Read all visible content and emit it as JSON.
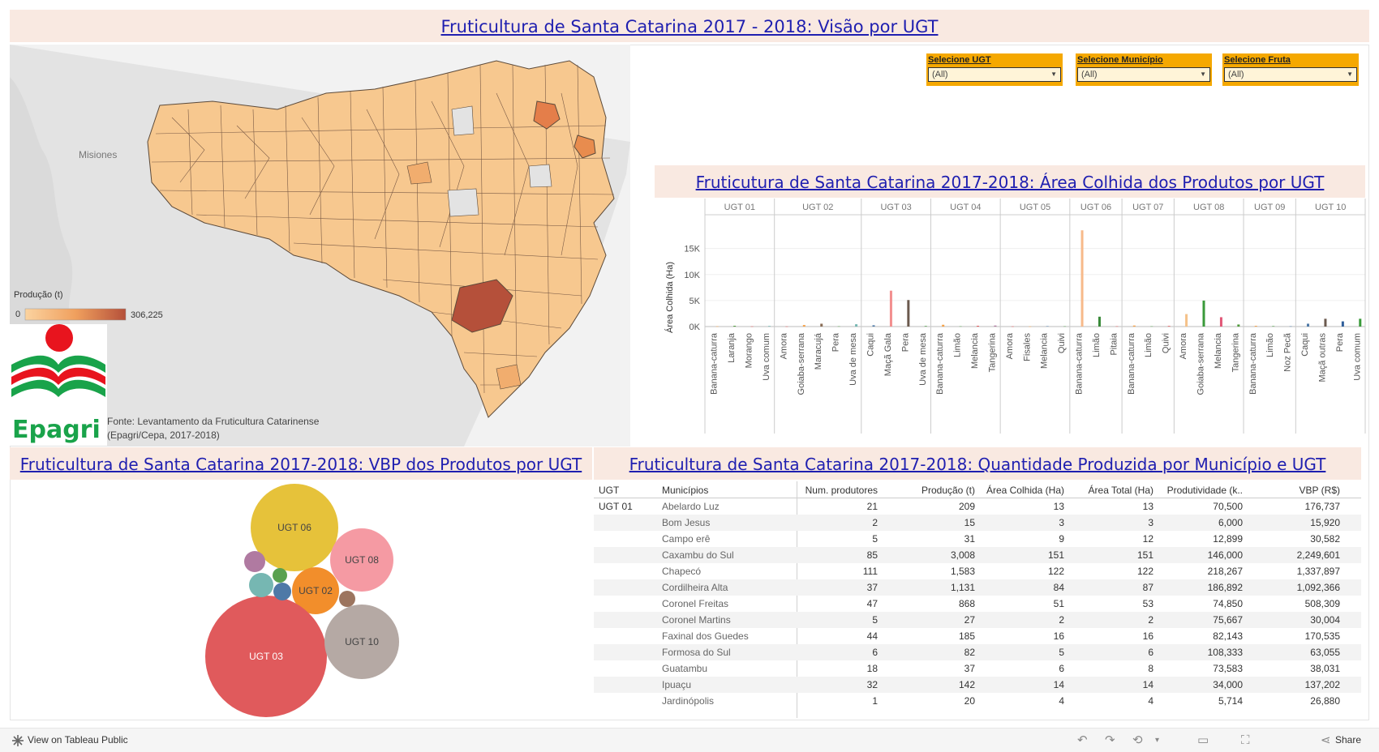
{
  "header": {
    "main_title": "Fruticultura de Santa Catarina 2017 - 2018: Visão por UGT"
  },
  "filters": [
    {
      "label": "Selecione UGT",
      "value": "(All)"
    },
    {
      "label": "Selecione Município",
      "value": "(All)"
    },
    {
      "label": "Selecione Fruta",
      "value": "(All)"
    }
  ],
  "map": {
    "place_label": "Misiones",
    "legend_title": "Produção (t)",
    "legend_min": "0",
    "legend_max": "306,225",
    "source_line1": "Fonte: Levantamento da Fruticultura Catarinense",
    "source_line2": "(Epagri/Cepa, 2017-2018)",
    "logo_text": "Epagri",
    "colors": {
      "low": "#f7c88f",
      "high": "#b5503a",
      "land": "#dcdcdc"
    }
  },
  "area_chart": {
    "title": "Fruticutura de Santa Catarina 2017-2018: Área Colhida dos Produtos por UGT",
    "ylabel": "Área Colhida (Ha)",
    "yticks": [
      "15K",
      "10K",
      "5K",
      "0K"
    ]
  },
  "chart_data": {
    "type": "bar",
    "ylabel": "Área Colhida (Ha)",
    "ylim": [
      0,
      19000
    ],
    "panels": [
      {
        "ugt": "UGT 01",
        "products": [
          "Banana-caturra",
          "Laranja",
          "Morango",
          "Uva comum"
        ],
        "values": [
          50,
          150,
          40,
          120
        ],
        "colors": [
          "#f5a24a",
          "#4e9a3a",
          "#e15759",
          "#76b7b2"
        ]
      },
      {
        "ugt": "UGT 02",
        "products": [
          "Amora",
          "Goiaba-serrana",
          "Maracujá",
          "Pera",
          "Uva de mesa"
        ],
        "values": [
          30,
          300,
          550,
          60,
          450
        ],
        "colors": [
          "#e15759",
          "#f5a24a",
          "#8a6e57",
          "#59a14f",
          "#76b7b2"
        ]
      },
      {
        "ugt": "UGT 03",
        "products": [
          "Caqui",
          "Maçã Gala",
          "Pera",
          "Uva de mesa"
        ],
        "values": [
          250,
          6900,
          5100,
          120
        ],
        "colors": [
          "#4e79a7",
          "#f28e8e",
          "#6b5a4e",
          "#59a14f"
        ]
      },
      {
        "ugt": "UGT 04",
        "products": [
          "Banana-caturra",
          "Limão",
          "Melancia",
          "Tangerina"
        ],
        "values": [
          350,
          60,
          150,
          200
        ],
        "colors": [
          "#f5a24a",
          "#59a14f",
          "#e15759",
          "#b07aa1"
        ]
      },
      {
        "ugt": "UGT 05",
        "products": [
          "Amora",
          "Fisales",
          "Melancia",
          "Quivi"
        ],
        "values": [
          40,
          30,
          80,
          60
        ],
        "colors": [
          "#e15759",
          "#f5a24a",
          "#4e79a7",
          "#59a14f"
        ]
      },
      {
        "ugt": "UGT 06",
        "products": [
          "Banana-caturra",
          "Limão",
          "Pitaia"
        ],
        "values": [
          18500,
          1900,
          60
        ],
        "colors": [
          "#f7b98a",
          "#3a8a3a",
          "#e15759"
        ]
      },
      {
        "ugt": "UGT 07",
        "products": [
          "Banana-caturra",
          "Limão",
          "Quivi"
        ],
        "values": [
          200,
          60,
          120
        ],
        "colors": [
          "#f5a24a",
          "#59a14f",
          "#e15759"
        ]
      },
      {
        "ugt": "UGT 08",
        "products": [
          "Amora",
          "Goiaba-serrana",
          "Melancia",
          "Tangerina"
        ],
        "values": [
          2400,
          5000,
          1800,
          400
        ],
        "colors": [
          "#f5c28a",
          "#3a9a3a",
          "#e15777",
          "#4e9a3a"
        ]
      },
      {
        "ugt": "UGT 09",
        "products": [
          "Banana-caturra",
          "Limão",
          "Noz Pecã"
        ],
        "values": [
          150,
          100,
          60
        ],
        "colors": [
          "#f5a24a",
          "#59a14f",
          "#4e79a7"
        ]
      },
      {
        "ugt": "UGT 10",
        "products": [
          "Caqui",
          "Maçã outras",
          "Pera",
          "Uva comum"
        ],
        "values": [
          550,
          1500,
          1000,
          1500
        ],
        "colors": [
          "#4e79a7",
          "#6b5a4e",
          "#2f5f9a",
          "#3a9a3a"
        ]
      }
    ]
  },
  "vbp_chart": {
    "title": "Fruticultura de Santa Catarina 2017-2018: VBP dos Produtos por UGT",
    "bubbles": [
      {
        "label": "UGT 06",
        "color": "#e6c23a"
      },
      {
        "label": "UGT 08",
        "color": "#f59aa3"
      },
      {
        "label": "UGT 02",
        "color": "#f28e2b"
      },
      {
        "label": "UGT 03",
        "color": "#e05a5c"
      },
      {
        "label": "UGT 10",
        "color": "#b5a9a4"
      },
      {
        "label": "",
        "color": "#b07aa1"
      },
      {
        "label": "",
        "color": "#76b7b2"
      },
      {
        "label": "",
        "color": "#59a14f"
      },
      {
        "label": "",
        "color": "#4e79a7"
      },
      {
        "label": "",
        "color": "#9c755f"
      }
    ]
  },
  "table": {
    "title": "Fruticultura de Santa Catarina 2017-2018: Quantidade  Produzida por Município e UGT",
    "columns": [
      "UGT",
      "Municípios",
      "Num. produtores",
      "Produção (t)",
      "Área Colhida (Ha)",
      "Área Total (Ha)",
      "Produtividade (k..",
      "VBP (R$)"
    ],
    "ugt_label": "UGT 01",
    "rows": [
      [
        "Abelardo Luz",
        "21",
        "209",
        "13",
        "13",
        "70,500",
        "176,737"
      ],
      [
        "Bom Jesus",
        "2",
        "15",
        "3",
        "3",
        "6,000",
        "15,920"
      ],
      [
        "Campo erê",
        "5",
        "31",
        "9",
        "12",
        "12,899",
        "30,582"
      ],
      [
        "Caxambu do Sul",
        "85",
        "3,008",
        "151",
        "151",
        "146,000",
        "2,249,601"
      ],
      [
        "Chapecó",
        "111",
        "1,583",
        "122",
        "122",
        "218,267",
        "1,337,897"
      ],
      [
        "Cordilheira Alta",
        "37",
        "1,131",
        "84",
        "87",
        "186,892",
        "1,092,366"
      ],
      [
        "Coronel Freitas",
        "47",
        "868",
        "51",
        "53",
        "74,850",
        "508,309"
      ],
      [
        "Coronel Martins",
        "5",
        "27",
        "2",
        "2",
        "75,667",
        "30,004"
      ],
      [
        "Faxinal dos Guedes",
        "44",
        "185",
        "16",
        "16",
        "82,143",
        "170,535"
      ],
      [
        "Formosa do Sul",
        "6",
        "82",
        "5",
        "6",
        "108,333",
        "63,055"
      ],
      [
        "Guatambu",
        "18",
        "37",
        "6",
        "8",
        "73,583",
        "38,031"
      ],
      [
        "Ipuaçu",
        "32",
        "142",
        "14",
        "14",
        "34,000",
        "137,202"
      ],
      [
        "Jardinópolis",
        "1",
        "20",
        "4",
        "4",
        "5,714",
        "26,880"
      ]
    ]
  },
  "footer": {
    "view_label": "View on Tableau Public",
    "share_label": "Share"
  }
}
